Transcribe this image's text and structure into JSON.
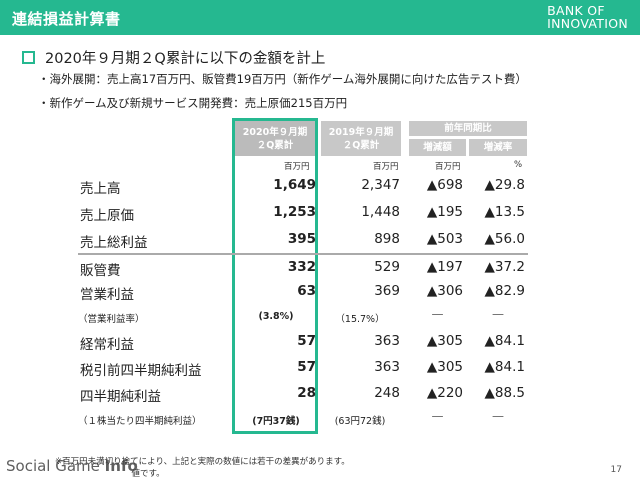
{
  "header": {
    "title": "連結損益計算書",
    "logo_line1": "BANK OF",
    "logo_line2": "INNOVATION",
    "accent": "#25b890"
  },
  "bullets": {
    "main": "2020年９月期２Q累計に以下の金額を計上",
    "sub1": "・海外展開：売上高17百万円、販管費19百万円（新作ゲーム海外展開に向けた広告テスト費）",
    "sub2": "・新作ゲーム及び新規サービス開発費：売上原価215百万円"
  },
  "table": {
    "headers": {
      "current_line1": "2020年９月期",
      "current_line2": "２Q累計",
      "previous_line1": "2019年９月期",
      "previous_line2": "２Q累計",
      "comparison": "前年同期比",
      "change_amount": "増減額",
      "change_rate": "増減率"
    },
    "units": {
      "current": "百万円",
      "previous": "百万円",
      "change_amount": "百万円",
      "change_rate": "%"
    },
    "rows": [
      {
        "label": "売上高",
        "current": "1,649",
        "previous": "2,347",
        "change": "▲698",
        "rate": "▲29.8"
      },
      {
        "label": "売上原価",
        "current": "1,253",
        "previous": "1,448",
        "change": "▲195",
        "rate": "▲13.5"
      },
      {
        "label": "売上総利益",
        "current": "395",
        "previous": "898",
        "change": "▲503",
        "rate": "▲56.0"
      },
      {
        "label": "販管費",
        "current": "332",
        "previous": "529",
        "change": "▲197",
        "rate": "▲37.2"
      },
      {
        "label": "営業利益",
        "current": "63",
        "previous": "369",
        "change": "▲306",
        "rate": "▲82.9"
      },
      {
        "label": "（営業利益率）",
        "current": "(3.8%)",
        "previous": "（15.7%）",
        "change": "—",
        "rate": "—"
      },
      {
        "label": "経常利益",
        "current": "57",
        "previous": "363",
        "change": "▲305",
        "rate": "▲84.1"
      },
      {
        "label": "税引前四半期純利益",
        "current": "57",
        "previous": "363",
        "change": "▲305",
        "rate": "▲84.1"
      },
      {
        "label": "四半期純利益",
        "current": "28",
        "previous": "248",
        "change": "▲220",
        "rate": "▲88.5"
      },
      {
        "label": "（１株当たり四半期純利益）",
        "current": "(7円37銭)",
        "previous": "(63円72銭)",
        "change": "—",
        "rate": "—"
      }
    ]
  },
  "footnotes": {
    "line1": "※百万円未満切り捨てにより、上記と実際の数値には若干の差異があります。",
    "line2": "　　　　　　　　　値です。"
  },
  "watermark": {
    "part1": "Social Game ",
    "part2": "Info"
  },
  "page_number": "17"
}
